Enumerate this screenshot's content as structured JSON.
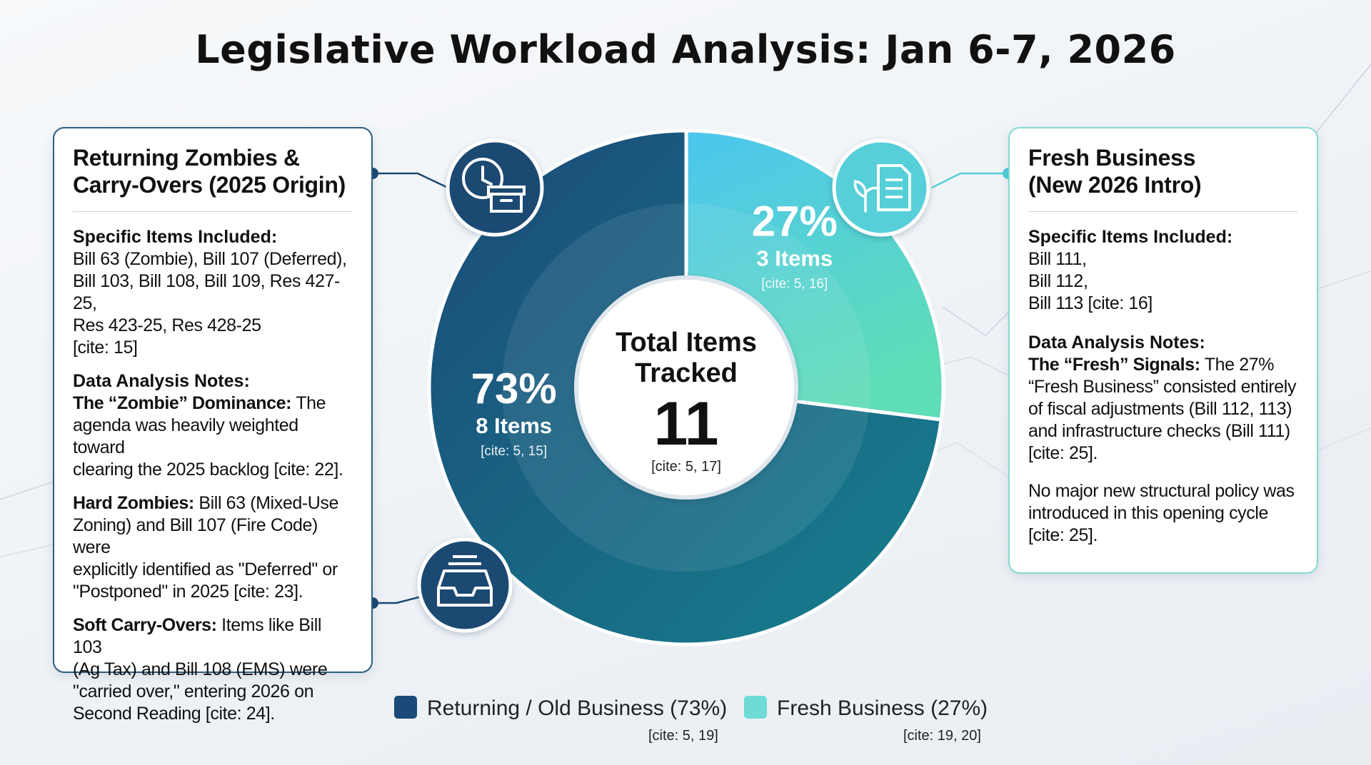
{
  "title": "Legislative Workload Analysis: Jan 6-7, 2026",
  "left_card": {
    "heading_line1": "Returning Zombies &",
    "heading_line2": "Carry-Overs (2025 Origin)",
    "items_label": "Specific Items Included:",
    "items_line1": "Bill 63 (Zombie), Bill 107 (Deferred),",
    "items_line2": "Bill 103, Bill 108, Bill 109, Res 427-25,",
    "items_line3": "Res 423-25, Res 428-25",
    "items_cite": "[cite: 15]",
    "notes_label": "Data Analysis Notes:",
    "note1_label": "The “Zombie” Dominance:",
    "note1_l1": " The",
    "note1_l2": "agenda was heavily weighted toward",
    "note1_l3": "clearing the 2025 backlog [cite: 22].",
    "note2_label": "Hard Zombies:",
    "note2_l1": " Bill 63 (Mixed-Use",
    "note2_l2": "Zoning) and Bill 107 (Fire Code) were",
    "note2_l3": "explicitly identified as \"Deferred\" or",
    "note2_l4": "\"Postponed\" in 2025 [cite: 23].",
    "note3_label": "Soft Carry-Overs:",
    "note3_l1": " Items like Bill 103",
    "note3_l2": "(Ag Tax) and Bill 108 (EMS) were",
    "note3_l3": "\"carried over,\" entering 2026 on",
    "note3_l4": "Second Reading [cite: 24]."
  },
  "right_card": {
    "heading_line1": "Fresh Business",
    "heading_line2": "(New 2026 Intro)",
    "items_label": "Specific Items Included:",
    "items_line1": "Bill 111,",
    "items_line2": "Bill 112,",
    "items_line3": "Bill 113 [cite: 16]",
    "notes_label": "Data Analysis Notes:",
    "note1_label": "The “Fresh” Signals:",
    "note1_l1": " The 27%",
    "note1_l2": "“Fresh Business” consisted entirely",
    "note1_l3": "of fiscal adjustments (Bill 112, 113)",
    "note1_l4": "and infrastructure checks (Bill 111)",
    "note1_l5": "[cite: 25].",
    "note2_l1": "No major new structural policy was",
    "note2_l2": "introduced in this opening cycle",
    "note2_l3": "[cite: 25]."
  },
  "center": {
    "line1": "Total Items",
    "line2": "Tracked",
    "total": "11",
    "cite": "[cite: 5, 17]"
  },
  "icons": {
    "top_left": "clock-box-icon",
    "top_right": "plant-document-icon",
    "bottom_left": "inbox-tray-icon"
  },
  "legend": {
    "old_label": "Returning / Old Business (73%)",
    "old_cite": "[cite: 5, 19]",
    "fresh_label": "Fresh Business (27%)",
    "fresh_cite": "[cite: 19, 20]"
  },
  "colors": {
    "old_dark": "#1b4a78",
    "old_light": "#16808e",
    "fresh_top": "#4cc6ef",
    "fresh_bottom": "#5fdcb8",
    "icon_dark": "#1a4a72",
    "icon_fresh": "#57cfd9"
  },
  "chart_data": {
    "type": "pie",
    "title": "",
    "slices": [
      {
        "label": "Returning / Old Business",
        "value": 73,
        "percent_label": "73%",
        "items_label": "8 Items",
        "count": 8,
        "cite": "[cite: 5, 15]"
      },
      {
        "label": "Fresh Business",
        "value": 27,
        "percent_label": "27%",
        "items_label": "3 Items",
        "count": 3,
        "cite": "[cite: 5, 16]"
      }
    ],
    "donut": true,
    "total": 11,
    "legend_position": "bottom"
  }
}
